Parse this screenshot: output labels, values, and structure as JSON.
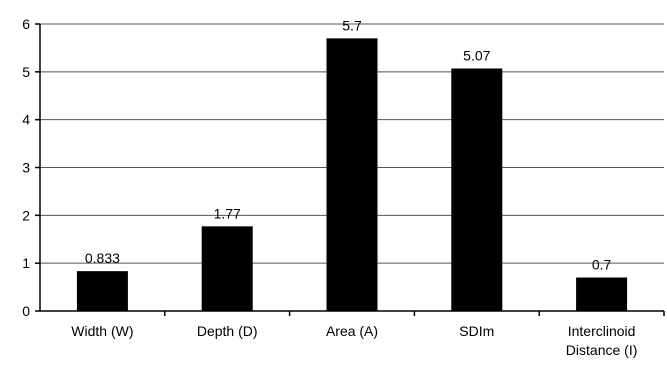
{
  "chart_data": {
    "type": "bar",
    "title": "",
    "xlabel": "",
    "ylabel": "",
    "ylim": [
      0,
      6
    ],
    "yticks": [
      0,
      1,
      2,
      3,
      4,
      5,
      6
    ],
    "grid": true,
    "legend": "none",
    "bar_color": "#000000",
    "categories": [
      [
        "Width (W)"
      ],
      [
        "Depth (D)"
      ],
      [
        "Area (A)"
      ],
      [
        "SDIm"
      ],
      [
        "Interclinoid",
        "Distance (I)"
      ]
    ],
    "values": [
      0.833,
      1.77,
      5.7,
      5.07,
      0.7
    ],
    "data_labels": [
      "0.833",
      "1.77",
      "5.7",
      "5.07",
      "0.7"
    ]
  }
}
